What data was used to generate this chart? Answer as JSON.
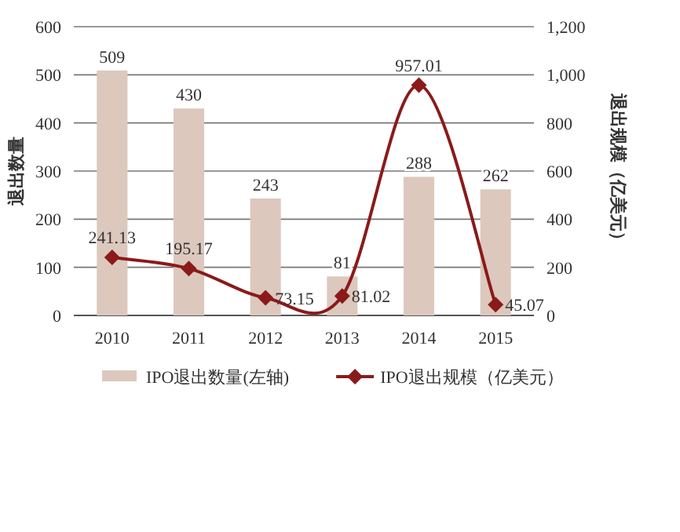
{
  "chart_data": {
    "type": "bar",
    "ylabel": "退出数量",
    "y2label": "退出规模（亿美元）",
    "categories": [
      "2010",
      "2011",
      "2012",
      "2013",
      "2014",
      "2015"
    ],
    "series": [
      {
        "name": "IPO退出数量(左轴)",
        "color": "#dcc8bd",
        "values": [
          509,
          430,
          243,
          81,
          288,
          262
        ]
      },
      {
        "name": "IPO退出规模（亿美元）",
        "type": "line",
        "axis": "y2",
        "color": "#8b1a1a",
        "marker": "diamond",
        "values": [
          241.13,
          195.17,
          73.15,
          81.02,
          957.01,
          45.07
        ]
      }
    ],
    "ylim": [
      0,
      600
    ],
    "yticks": [
      0,
      100,
      200,
      300,
      400,
      500,
      600
    ],
    "y2lim": [
      0,
      1200
    ],
    "y2ticks": [
      0,
      200,
      400,
      600,
      800,
      {
        "value": 1000,
        "label": "1,000"
      },
      {
        "value": 1200,
        "label": "1,200"
      }
    ],
    "data_labels": true,
    "grid": "y",
    "legend": "bottom"
  }
}
